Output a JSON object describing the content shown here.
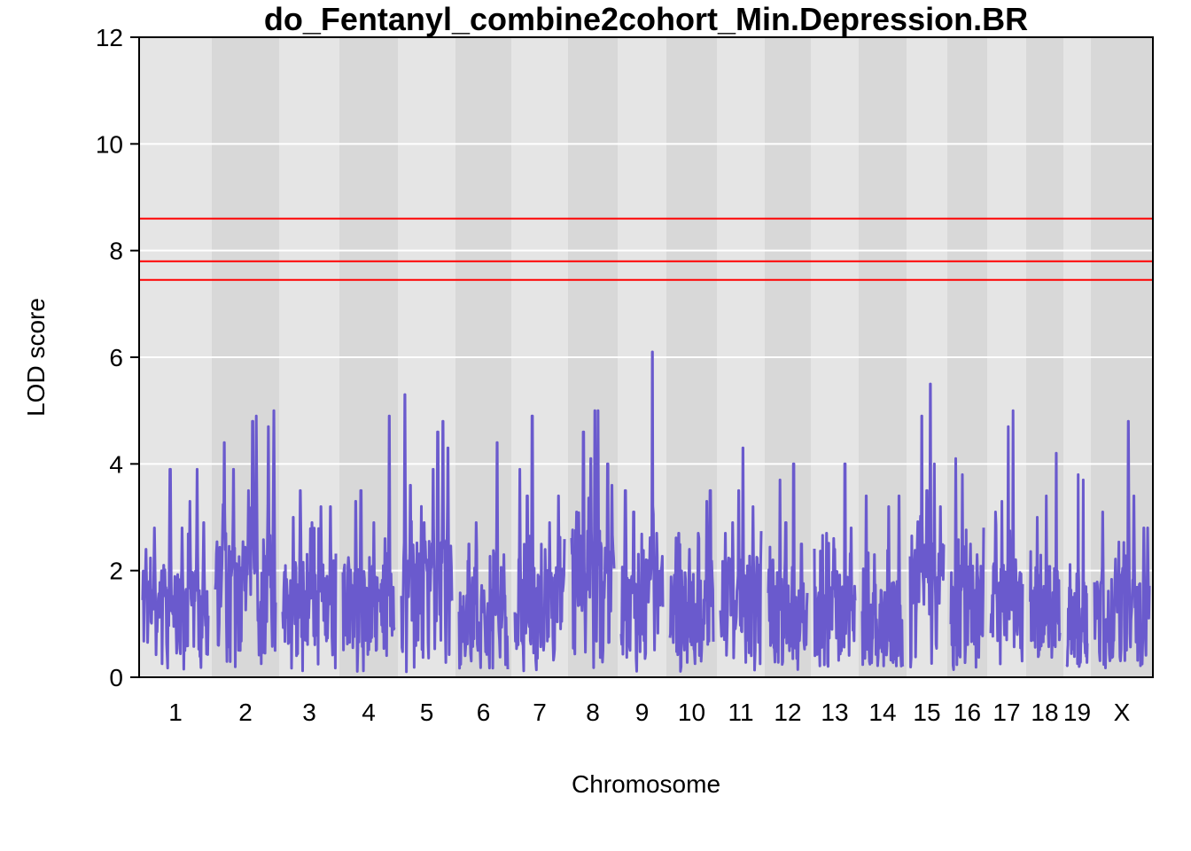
{
  "chart_data": {
    "type": "line",
    "title": "do_Fentanyl_combine2cohort_Min.Depression.BR",
    "xlabel": "Chromosome",
    "ylabel": "LOD score",
    "ylim": [
      0,
      12
    ],
    "yticks": [
      "0",
      "2",
      "4",
      "6",
      "8",
      "10",
      "12"
    ],
    "grid": true,
    "background_bands": "alternating light and dark gray per chromosome",
    "series_color": "#6a5acd",
    "threshold_color": "#ff0000",
    "thresholds": [
      8.6,
      7.8,
      7.45
    ],
    "chromosomes": [
      {
        "label": "1",
        "baseline": 1.2,
        "peaks": [
          [
            0.05,
            2.4
          ],
          [
            0.18,
            2.8
          ],
          [
            0.32,
            2.1
          ],
          [
            0.42,
            3.9
          ],
          [
            0.6,
            2.8
          ],
          [
            0.72,
            3.3
          ],
          [
            0.83,
            3.9
          ],
          [
            0.93,
            2.9
          ]
        ]
      },
      {
        "label": "2",
        "baseline": 1.8,
        "peaks": [
          [
            0.15,
            4.4
          ],
          [
            0.3,
            3.9
          ],
          [
            0.55,
            3.5
          ],
          [
            0.62,
            4.8
          ],
          [
            0.68,
            4.9
          ],
          [
            0.88,
            4.7
          ],
          [
            0.97,
            5.0
          ]
        ]
      },
      {
        "label": "3",
        "baseline": 1.4,
        "peaks": [
          [
            0.2,
            3.0
          ],
          [
            0.33,
            3.5
          ],
          [
            0.55,
            2.9
          ],
          [
            0.72,
            3.2
          ],
          [
            0.9,
            3.2
          ]
        ]
      },
      {
        "label": "4",
        "baseline": 1.3,
        "peaks": [
          [
            0.25,
            3.3
          ],
          [
            0.35,
            3.5
          ],
          [
            0.6,
            2.9
          ],
          [
            0.82,
            2.6
          ],
          [
            0.9,
            4.9
          ]
        ]
      },
      {
        "label": "5",
        "baseline": 1.8,
        "peaks": [
          [
            0.07,
            5.3
          ],
          [
            0.18,
            3.6
          ],
          [
            0.45,
            2.9
          ],
          [
            0.63,
            3.9
          ],
          [
            0.72,
            4.6
          ],
          [
            0.82,
            4.8
          ],
          [
            0.92,
            4.3
          ]
        ]
      },
      {
        "label": "6",
        "baseline": 1.1,
        "peaks": [
          [
            0.2,
            2.5
          ],
          [
            0.35,
            2.9
          ],
          [
            0.72,
            2.3
          ],
          [
            0.78,
            4.4
          ],
          [
            0.92,
            2.3
          ]
        ]
      },
      {
        "label": "7",
        "baseline": 1.3,
        "peaks": [
          [
            0.1,
            3.9
          ],
          [
            0.25,
            3.4
          ],
          [
            0.35,
            4.9
          ],
          [
            0.7,
            2.9
          ],
          [
            0.88,
            3.4
          ]
        ]
      },
      {
        "label": "8",
        "baseline": 2.0,
        "peaks": [
          [
            0.12,
            3.1
          ],
          [
            0.28,
            4.6
          ],
          [
            0.45,
            4.1
          ],
          [
            0.55,
            5.0
          ],
          [
            0.62,
            5.0
          ],
          [
            0.85,
            4.0
          ],
          [
            0.95,
            3.6
          ]
        ]
      },
      {
        "label": "9",
        "baseline": 1.6,
        "peaks": [
          [
            0.1,
            3.5
          ],
          [
            0.3,
            3.1
          ],
          [
            0.68,
            2.1
          ],
          [
            0.75,
            6.1
          ],
          [
            0.85,
            2.7
          ]
        ]
      },
      {
        "label": "10",
        "baseline": 1.2,
        "peaks": [
          [
            0.2,
            2.7
          ],
          [
            0.45,
            2.4
          ],
          [
            0.65,
            2.7
          ],
          [
            0.85,
            3.3
          ],
          [
            0.93,
            3.5
          ]
        ]
      },
      {
        "label": "11",
        "baseline": 1.5,
        "peaks": [
          [
            0.12,
            2.7
          ],
          [
            0.3,
            2.9
          ],
          [
            0.45,
            3.5
          ],
          [
            0.55,
            4.3
          ],
          [
            0.8,
            3.2
          ]
        ]
      },
      {
        "label": "12",
        "baseline": 1.2,
        "peaks": [
          [
            0.12,
            2.2
          ],
          [
            0.3,
            3.7
          ],
          [
            0.45,
            2.9
          ],
          [
            0.65,
            4.0
          ],
          [
            0.85,
            2.5
          ]
        ]
      },
      {
        "label": "13",
        "baseline": 1.2,
        "peaks": [
          [
            0.3,
            2.7
          ],
          [
            0.5,
            2.4
          ],
          [
            0.75,
            4.0
          ],
          [
            0.9,
            2.8
          ]
        ]
      },
      {
        "label": "14",
        "baseline": 1.0,
        "peaks": [
          [
            0.1,
            3.4
          ],
          [
            0.3,
            2.3
          ],
          [
            0.65,
            3.2
          ],
          [
            0.9,
            3.4
          ]
        ]
      },
      {
        "label": "15",
        "baseline": 1.8,
        "peaks": [
          [
            0.35,
            4.9
          ],
          [
            0.5,
            3.5
          ],
          [
            0.6,
            5.5
          ],
          [
            0.72,
            4.0
          ],
          [
            0.9,
            3.2
          ]
        ]
      },
      {
        "label": "16",
        "baseline": 1.4,
        "peaks": [
          [
            0.15,
            4.1
          ],
          [
            0.35,
            3.8
          ],
          [
            0.6,
            2.5
          ],
          [
            0.8,
            2.3
          ]
        ]
      },
      {
        "label": "17",
        "baseline": 1.4,
        "peaks": [
          [
            0.15,
            3.1
          ],
          [
            0.35,
            3.3
          ],
          [
            0.55,
            4.7
          ],
          [
            0.7,
            5.0
          ],
          [
            0.9,
            1.8
          ]
        ]
      },
      {
        "label": "18",
        "baseline": 1.3,
        "peaks": [
          [
            0.25,
            3.0
          ],
          [
            0.55,
            3.4
          ],
          [
            0.88,
            4.2
          ]
        ]
      },
      {
        "label": "19",
        "baseline": 1.0,
        "peaks": [
          [
            0.3,
            1.5
          ],
          [
            0.55,
            3.8
          ],
          [
            0.8,
            3.7
          ]
        ]
      },
      {
        "label": "X",
        "baseline": 1.1,
        "peaks": [
          [
            0.15,
            3.1
          ],
          [
            0.4,
            1.6
          ],
          [
            0.62,
            4.8
          ],
          [
            0.72,
            3.4
          ],
          [
            0.9,
            2.8
          ],
          [
            0.97,
            2.8
          ]
        ]
      }
    ]
  }
}
